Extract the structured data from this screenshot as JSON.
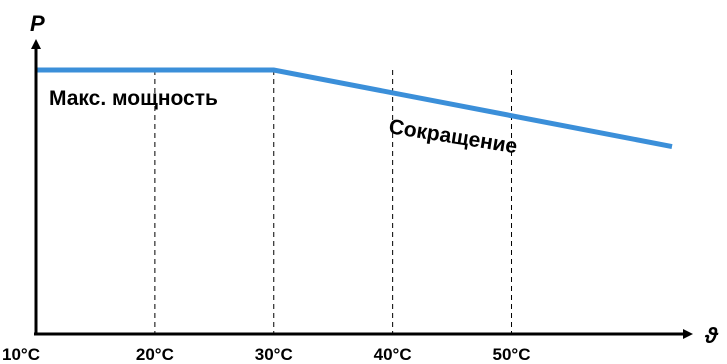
{
  "chart_data": {
    "type": "line",
    "title": "",
    "xlabel": "ϑ",
    "ylabel": "P",
    "categories": [
      "10°C",
      "20°C",
      "30°C",
      "40°C",
      "50°C"
    ],
    "x_values": [
      10,
      20,
      30,
      40,
      50
    ],
    "xlim": [
      10,
      63.5
    ],
    "series": [
      {
        "color": "#3b8fd9",
        "points": [
          {
            "x": 10,
            "y": 1.0
          },
          {
            "x": 30,
            "y": 1.0
          },
          {
            "x": 63.5,
            "y": 0.71
          }
        ]
      }
    ],
    "ylim": [
      0,
      1.12
    ],
    "grid": {
      "vertical_dashed_at": [
        20,
        30,
        40,
        50
      ]
    },
    "annotations": [
      {
        "id": "max-power",
        "text": "Макс. мощность"
      },
      {
        "id": "reduction",
        "text": "Сокращение"
      }
    ],
    "axis_color": "#000000",
    "grid_color": "#000000"
  }
}
